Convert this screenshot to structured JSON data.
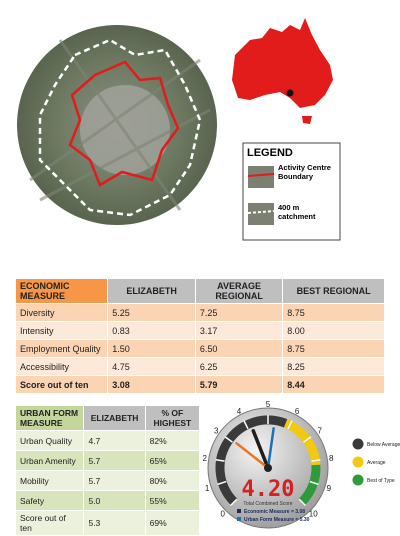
{
  "legend": {
    "title": "LEGEND",
    "items": [
      "Activity Centre Boundary",
      "400 m catchment"
    ]
  },
  "economic_table": {
    "header": [
      "ECONOMIC MEASURE",
      "ELIZABETH",
      "AVERAGE REGIONAL",
      "BEST REGIONAL"
    ],
    "rows": [
      [
        "Diversity",
        "5.25",
        "7.25",
        "8.75"
      ],
      [
        "Intensity",
        "0.83",
        "3.17",
        "8.00"
      ],
      [
        "Employment Quality",
        "1.50",
        "6.50",
        "8.75"
      ],
      [
        "Accessibility",
        "4.75",
        "6.25",
        "8.25"
      ],
      [
        "Score out of ten",
        "3.08",
        "5.79",
        "8.44"
      ]
    ]
  },
  "urban_form_table": {
    "header": [
      "URBAN FORM MEASURE",
      "ELIZABETH",
      "% OF HIGHEST"
    ],
    "rows": [
      [
        "Urban Quality",
        "4.7",
        "82%"
      ],
      [
        "Urban Amenity",
        "5.7",
        "65%"
      ],
      [
        "Mobility",
        "5.7",
        "80%"
      ],
      [
        "Safety",
        "5.0",
        "55%"
      ],
      [
        "Score out of ten",
        "5.3",
        "69%"
      ]
    ]
  },
  "gauge": {
    "min": 0,
    "max": 10,
    "ticks": [
      0,
      1,
      2,
      3,
      4,
      5,
      6,
      7,
      8,
      9,
      10
    ],
    "bands": [
      {
        "from": 0,
        "to": 5.8,
        "color": "#3a3a3a"
      },
      {
        "from": 5.8,
        "to": 8.2,
        "color": "#f2c811"
      },
      {
        "from": 8.2,
        "to": 10,
        "color": "#2e9a3a"
      }
    ],
    "needles": [
      {
        "value": 4.2,
        "color": "#1e1e1e"
      },
      {
        "value": 3.08,
        "color": "#e87722"
      },
      {
        "value": 5.3,
        "color": "#1f6fb5"
      }
    ],
    "score": "4.20",
    "score_label": "Total Combined Score",
    "measures": [
      {
        "label": "Economic Measure = 3.08",
        "color": "#1b2a5c"
      },
      {
        "label": "Urban Form Measure = 5.30",
        "color": "#1f6fb5"
      }
    ],
    "legend": [
      {
        "label": "Below Average",
        "color": "#3a3a3a"
      },
      {
        "label": "Average",
        "color": "#f2c811"
      },
      {
        "label": "Best of Type",
        "color": "#2e9a3a"
      }
    ]
  }
}
